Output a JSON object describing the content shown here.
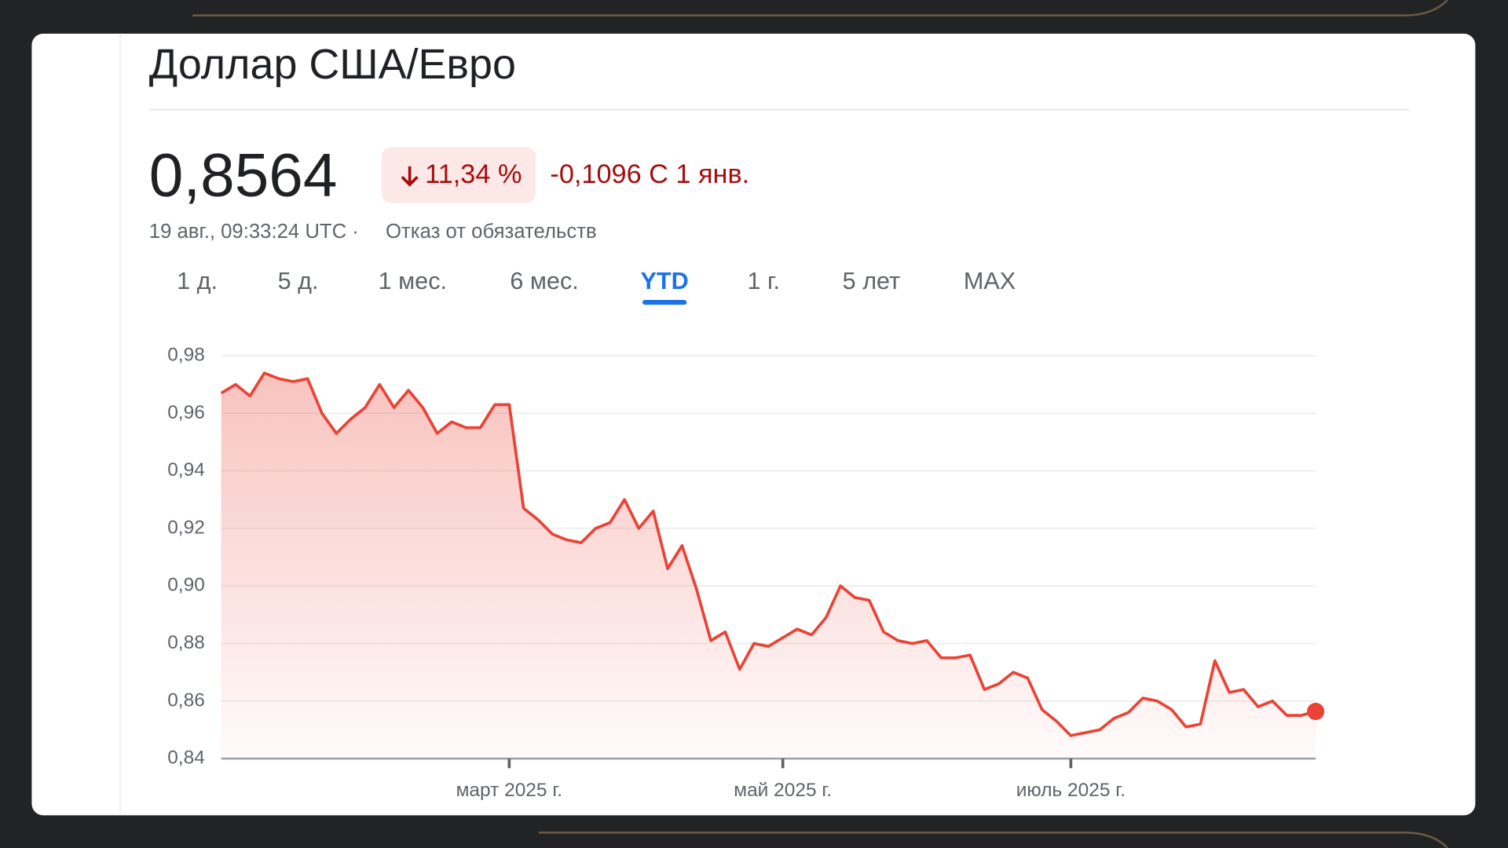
{
  "header": {
    "title": "Доллар США/Евро"
  },
  "quote": {
    "price": "0,8564",
    "change_percent": "11,34 %",
    "change": "-0,1096 С 1 янв.",
    "timestamp": "19 авг., 09:33:24 UTC ·",
    "disclaimer": "Отказ от обязательств"
  },
  "tabs": [
    "1 д.",
    "5 д.",
    "1 мес.",
    "6 мес.",
    "YTD",
    "1 г.",
    "5 лет",
    "MAX"
  ],
  "selected_tab": 4,
  "chart_data": {
    "type": "line",
    "color": "#ea4335",
    "grid": true,
    "categories": [
      null,
      null,
      null,
      null,
      null,
      null,
      null,
      null,
      null,
      null,
      null,
      null,
      null,
      null,
      null,
      null,
      null,
      null,
      null,
      null,
      "март 2025 г.",
      null,
      null,
      null,
      null,
      null,
      null,
      null,
      null,
      null,
      null,
      null,
      null,
      null,
      null,
      null,
      null,
      null,
      null,
      "май 2025 г.",
      null,
      null,
      null,
      null,
      null,
      null,
      null,
      null,
      null,
      null,
      null,
      null,
      null,
      null,
      null,
      null,
      null,
      null,
      null,
      "июль 2025 г.",
      null,
      null,
      null,
      null,
      null,
      null,
      null,
      null,
      null,
      null,
      null,
      null,
      null,
      null,
      null,
      null,
      null
    ],
    "values": [
      0.967,
      0.97,
      0.966,
      0.974,
      0.972,
      0.971,
      0.972,
      0.96,
      0.953,
      0.958,
      0.962,
      0.97,
      0.962,
      0.968,
      0.962,
      0.953,
      0.957,
      0.955,
      0.955,
      0.963,
      0.963,
      0.927,
      0.923,
      0.918,
      0.916,
      0.915,
      0.92,
      0.922,
      0.93,
      0.92,
      0.926,
      0.906,
      0.914,
      0.899,
      0.881,
      0.884,
      0.871,
      0.88,
      0.879,
      0.882,
      0.885,
      0.883,
      0.889,
      0.9,
      0.896,
      0.895,
      0.884,
      0.881,
      0.88,
      0.881,
      0.875,
      0.875,
      0.876,
      0.864,
      0.866,
      0.87,
      0.868,
      0.857,
      0.853,
      0.848,
      0.849,
      0.85,
      0.854,
      0.856,
      0.861,
      0.86,
      0.857,
      0.851,
      0.852,
      0.874,
      0.863,
      0.864,
      0.858,
      0.86,
      0.855,
      0.855,
      0.8564
    ],
    "ylim": [
      0.84,
      0.98
    ],
    "yticks": [
      {
        "value": 0.84,
        "label": "0,84"
      },
      {
        "value": 0.86,
        "label": "0,86"
      },
      {
        "value": 0.88,
        "label": "0,88"
      },
      {
        "value": 0.9,
        "label": "0,90"
      },
      {
        "value": 0.92,
        "label": "0,92"
      },
      {
        "value": 0.94,
        "label": "0,94"
      },
      {
        "value": 0.96,
        "label": "0,96"
      },
      {
        "value": 0.98,
        "label": "0,98"
      }
    ]
  }
}
